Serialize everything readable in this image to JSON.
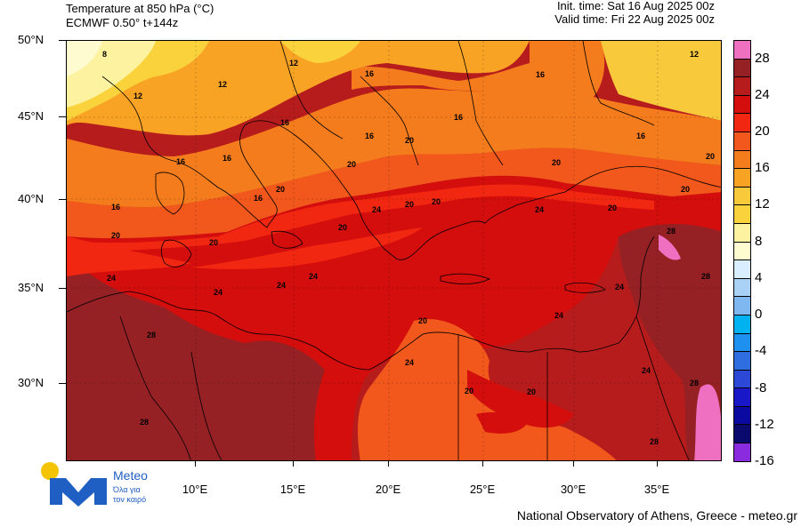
{
  "header": {
    "title": "Temperature at 850 hPa (°C)",
    "model": "ECMWF 0.50° t+144z",
    "init_time": "Init. time: Sat 16 Aug 2025 00z",
    "valid_time": "Valid time: Fri 22 Aug 2025 00z"
  },
  "axes": {
    "lat_labels": [
      "50°N",
      "45°N",
      "40°N",
      "35°N",
      "30°N"
    ],
    "lon_labels": [
      "10°E",
      "15°E",
      "20°E",
      "25°E",
      "30°E",
      "35°E"
    ]
  },
  "colorbar": {
    "labels": [
      "28",
      "24",
      "20",
      "16",
      "12",
      "8",
      "4",
      "0",
      "-4",
      "-8",
      "-12",
      "-16"
    ],
    "colors": [
      "#ef6fc0",
      "#962125",
      "#b71c1c",
      "#d40d0d",
      "#f12711",
      "#f2571b",
      "#f57c1d",
      "#f9a324",
      "#f8c93a",
      "#fad33c",
      "#fdf2a0",
      "#fefbd0",
      "#d9efff",
      "#a8d1f5",
      "#7fb8f0",
      "#00b2f0",
      "#1e90f0",
      "#2f6ee0",
      "#2b48d6",
      "#1818c8",
      "#0a0aa0",
      "#0a0a6e",
      "#8b2bdf"
    ]
  },
  "isotherm_labels": [
    "8",
    "12",
    "12",
    "12",
    "12",
    "16",
    "16",
    "16",
    "16",
    "16",
    "16",
    "16",
    "16",
    "16",
    "16",
    "20",
    "20",
    "20",
    "20",
    "20",
    "20",
    "20",
    "20",
    "20",
    "20",
    "20",
    "20",
    "20",
    "20",
    "20",
    "24",
    "24",
    "24",
    "24",
    "24",
    "24",
    "24",
    "24",
    "24",
    "24",
    "28",
    "28",
    "28",
    "28",
    "28",
    "28"
  ],
  "logo": {
    "name": "Meteo",
    "tagline_1": "Όλα για",
    "tagline_2": "τον καιρό"
  },
  "credit": "National Observatory of Athens, Greece - meteo.gr"
}
